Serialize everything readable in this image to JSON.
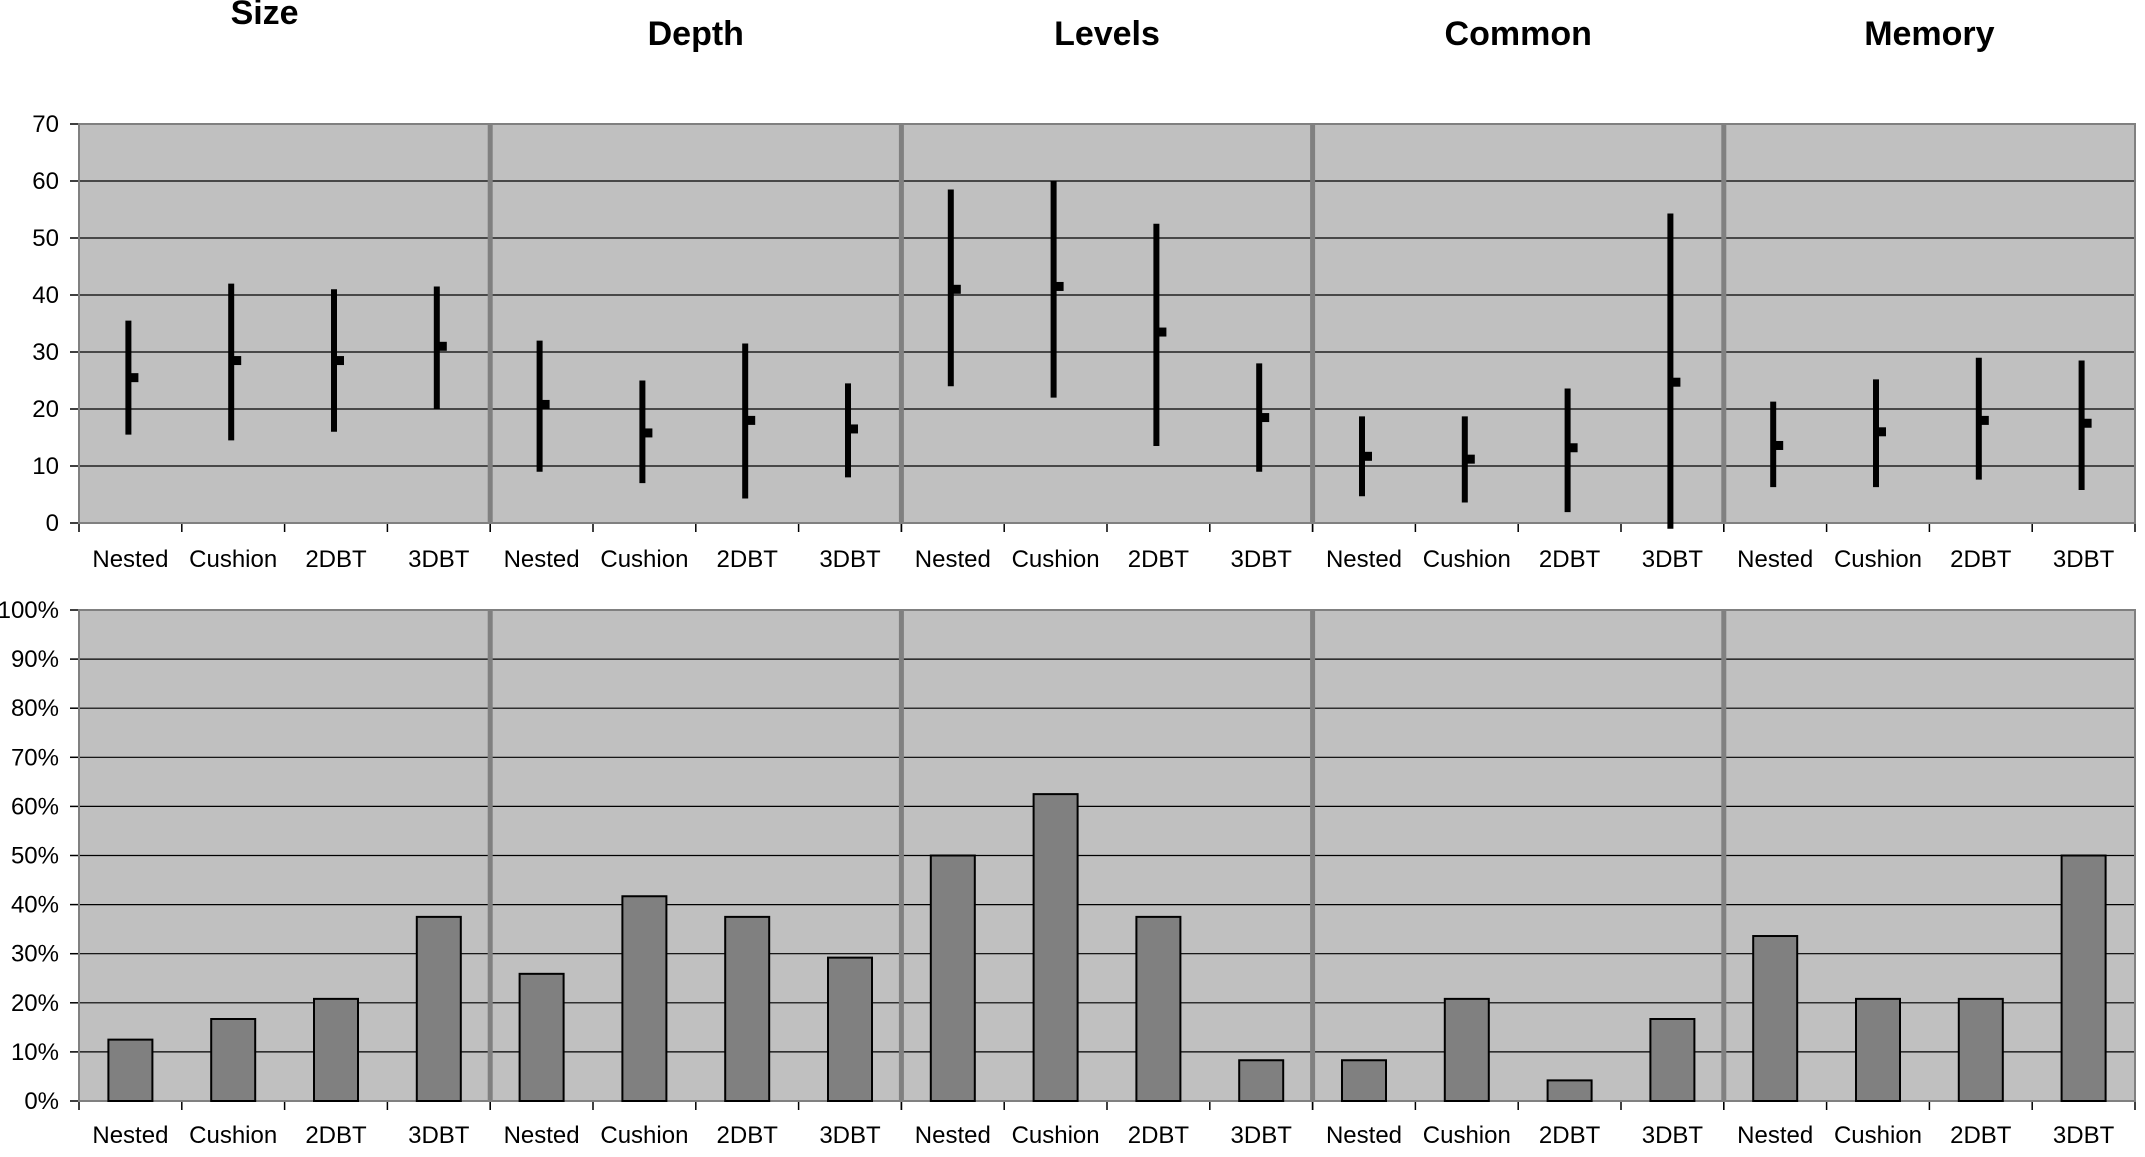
{
  "colors": {
    "plot_background": "#c0c0c0",
    "bar_fill": "#808080",
    "bar_stroke": "#000000",
    "range_line": "#000000",
    "separator": "#808080",
    "gridline": "#000000"
  },
  "chart_data": [
    {
      "type": "range",
      "groups": [
        "Size",
        "Depth",
        "Levels",
        "Common",
        "Memory"
      ],
      "categories": [
        "Nested",
        "Cushion",
        "2DBT",
        "3DBT"
      ],
      "ylim": [
        0,
        70
      ],
      "yticks": [
        "0",
        "10",
        "20",
        "30",
        "40",
        "50",
        "60",
        "70"
      ],
      "grid": true,
      "series": [
        {
          "group": "Size",
          "low": [
            15.5,
            14.5,
            16,
            20
          ],
          "high": [
            35.5,
            42,
            41,
            41.5
          ],
          "mid": [
            25.5,
            28.5,
            28.5,
            31
          ]
        },
        {
          "group": "Depth",
          "low": [
            9,
            7,
            4.3,
            8
          ],
          "high": [
            32,
            25,
            31.5,
            24.5
          ],
          "mid": [
            20.8,
            15.8,
            18,
            16.5
          ]
        },
        {
          "group": "Levels",
          "low": [
            24,
            22,
            13.5,
            9
          ],
          "high": [
            58.5,
            60,
            52.5,
            28
          ],
          "mid": [
            41,
            41.5,
            33.5,
            18.5
          ]
        },
        {
          "group": "Common",
          "low": [
            4.7,
            3.6,
            1.9,
            -1
          ],
          "high": [
            18.7,
            18.7,
            23.6,
            54.3
          ],
          "mid": [
            11.7,
            11.2,
            13.2,
            24.7
          ]
        },
        {
          "group": "Memory",
          "low": [
            6.3,
            6.3,
            7.6,
            5.8
          ],
          "high": [
            21.3,
            25.2,
            29,
            28.5
          ],
          "mid": [
            13.6,
            16,
            18,
            17.5
          ]
        }
      ]
    },
    {
      "type": "bar",
      "groups": [
        "Size",
        "Depth",
        "Levels",
        "Common",
        "Memory"
      ],
      "categories": [
        "Nested",
        "Cushion",
        "2DBT",
        "3DBT"
      ],
      "ylim": [
        0,
        100
      ],
      "yticks": [
        "0%",
        "10%",
        "20%",
        "30%",
        "40%",
        "50%",
        "60%",
        "70%",
        "80%",
        "90%",
        "100%"
      ],
      "grid": true,
      "series": [
        {
          "group": "Size",
          "values": [
            12.5,
            16.7,
            20.8,
            37.5
          ]
        },
        {
          "group": "Depth",
          "values": [
            25.9,
            41.7,
            37.5,
            29.2
          ]
        },
        {
          "group": "Levels",
          "values": [
            50,
            62.5,
            37.5,
            8.3
          ]
        },
        {
          "group": "Common",
          "values": [
            8.3,
            20.8,
            4.2,
            16.7
          ]
        },
        {
          "group": "Memory",
          "values": [
            33.6,
            20.8,
            20.8,
            50
          ]
        }
      ]
    }
  ]
}
